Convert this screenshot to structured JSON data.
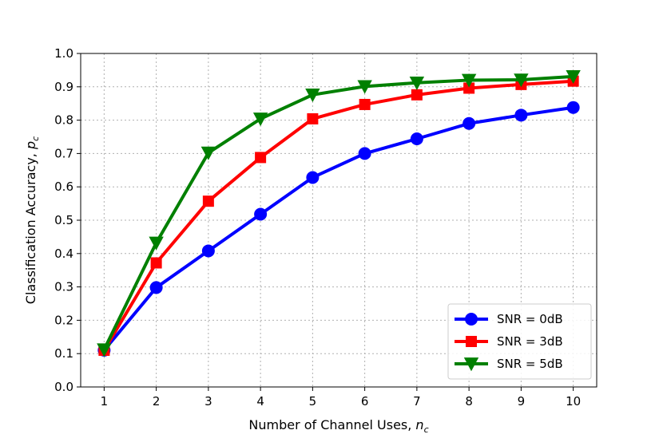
{
  "chart_data": {
    "type": "line",
    "xlabel": "Number of Channel Uses, ",
    "xlabel_var": "n",
    "xlabel_sub": "c",
    "ylabel": "Classification Accuracy, ",
    "ylabel_var": "p",
    "ylabel_sub": "c",
    "x": [
      1,
      2,
      3,
      4,
      5,
      6,
      7,
      8,
      9,
      10
    ],
    "x_ticks": [
      "1",
      "2",
      "3",
      "4",
      "5",
      "6",
      "7",
      "8",
      "9",
      "10"
    ],
    "y_ticks": [
      "0.0",
      "0.1",
      "0.2",
      "0.3",
      "0.4",
      "0.5",
      "0.6",
      "0.7",
      "0.8",
      "0.9",
      "1.0"
    ],
    "xlim": [
      0.55,
      10.45
    ],
    "ylim": [
      0.0,
      1.0
    ],
    "grid": true,
    "legend_position": "bottom-right",
    "series": [
      {
        "name": "SNR = 0dB",
        "color": "#0000ff",
        "marker": "circle",
        "values": [
          0.11,
          0.298,
          0.408,
          0.518,
          0.628,
          0.7,
          0.744,
          0.79,
          0.815,
          0.838
        ]
      },
      {
        "name": "SNR = 3dB",
        "color": "#ff0000",
        "marker": "square",
        "values": [
          0.11,
          0.372,
          0.557,
          0.688,
          0.804,
          0.847,
          0.876,
          0.896,
          0.907,
          0.917
        ]
      },
      {
        "name": "SNR = 5dB",
        "color": "#008000",
        "marker": "triangle-down",
        "values": [
          0.112,
          0.432,
          0.702,
          0.804,
          0.876,
          0.901,
          0.912,
          0.92,
          0.921,
          0.931
        ]
      }
    ]
  }
}
